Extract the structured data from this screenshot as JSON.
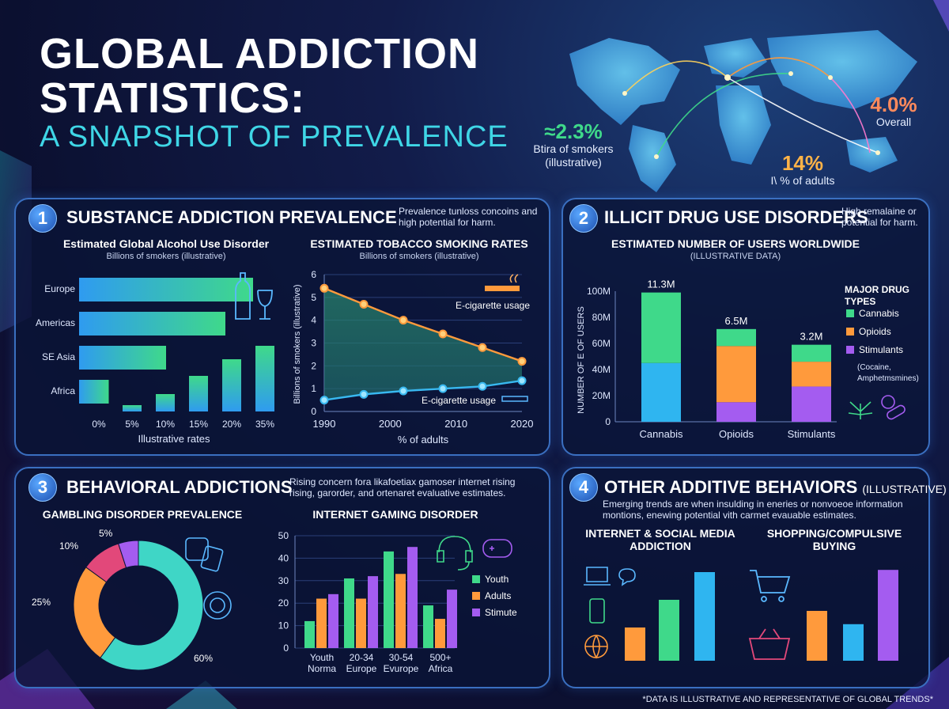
{
  "header": {
    "title_line1": "GLOBAL ADDICTION",
    "title_line2": "STATISTICS:",
    "subtitle": "A SNAPSHOT OF PREVALENCE"
  },
  "map": {
    "stat1": {
      "value": "≈2.3%",
      "line1": "Btira of smokers",
      "line2": "(illustrative)"
    },
    "stat2": {
      "value": "4.0%",
      "line1": "Overall"
    },
    "stat3": {
      "value": "14%",
      "line1": "I\\ % of adults"
    }
  },
  "panels": {
    "p1": {
      "num": "1",
      "title": "SUBSTANCE ADDICTION PREVALENCE",
      "desc": "Prevalence tunloss concoins and high potential for harm."
    },
    "p2": {
      "num": "2",
      "title": "ILLICIT DRUG USE DISORDERS",
      "desc": "High remalaine or potential for harm."
    },
    "p3": {
      "num": "3",
      "title": "BEHAVIORAL ADDICTIONS",
      "desc": "Rising concern fora likafoetiax gamoser internet rising rising, garorder, and ortenaret evaluative estimates."
    },
    "p4": {
      "num": "4",
      "title": "OTHER ADDITIVE BEHAVIORS",
      "title_note": "(ILLUSTRATIVE)",
      "desc": "Emerging trends are when insulding in eneries or nonvoeoe information montions, enewing potential vith carmet evauable estimates."
    }
  },
  "footer": "*DATA IS ILLUSTRATIVE AND REPRESENTATIVE OF GLOBAL TRENDS*",
  "colors": {
    "accent": "#3fd6e6",
    "panel_border": "#3a6fc0",
    "green": "#3fd98a",
    "orange": "#ff9a3c",
    "purple": "#a45cf0",
    "blue": "#2fb5f0"
  },
  "chart_data": [
    {
      "id": "alcohol",
      "type": "bar",
      "title": "Estimated Global Alcohol Use Disorder",
      "subtitle": "Billions of smokers (illustrative)",
      "xlabel": "Illustrative rates",
      "x_ticks": [
        "0%",
        "5%",
        "10%",
        "15%",
        "20%",
        "35%"
      ],
      "horizontal": {
        "categories": [
          "Europe",
          "Americas",
          "SE Asia",
          "Africa"
        ],
        "values": [
          88,
          74,
          44,
          15
        ]
      },
      "vertical": {
        "values": [
          8,
          22,
          45,
          66,
          83
        ]
      },
      "icon": "wine-icon"
    },
    {
      "id": "tobacco",
      "type": "line",
      "title": "ESTIMATED TOBACCO SMOKING RATES",
      "subtitle": "Billions of smokers (illustrative)",
      "ylabel": "Billions of smokers (illustrative)",
      "xlabel": "% of adults",
      "x_ticks": [
        "1990",
        "2000",
        "2010",
        "2020"
      ],
      "y_ticks": [
        "0",
        "1",
        "2",
        "3",
        "4",
        "5",
        "6"
      ],
      "xlim": [
        1990,
        2020
      ],
      "ylim": [
        0,
        6
      ],
      "series": [
        {
          "name": "E-cigarette usage",
          "x": [
            1990,
            1996,
            2002,
            2008,
            2014,
            2020
          ],
          "values": [
            5.4,
            4.7,
            4.0,
            3.4,
            2.8,
            2.2
          ]
        },
        {
          "name": "E-cigarette usage",
          "x": [
            1990,
            1996,
            2002,
            2008,
            2014,
            2020
          ],
          "values": [
            0.5,
            0.75,
            0.9,
            1.0,
            1.1,
            1.35
          ]
        }
      ]
    },
    {
      "id": "drugs",
      "type": "bar",
      "stacked": true,
      "title": "ESTIMATED NUMBER OF USERS WORLDWIDE",
      "subtitle": "(ILLUSTRATIVE DATA)",
      "ylabel": "NUMBER OF E OF USERS",
      "categories": [
        "Cannabis",
        "Opioids",
        "Stimulants"
      ],
      "top_labels": [
        "11.3M",
        "6.5M",
        "3.2M"
      ],
      "y_ticks": [
        "0",
        "20M",
        "40M",
        "60M",
        "80M",
        "100M"
      ],
      "ylim": [
        0,
        100
      ],
      "series": [
        {
          "color": "#2fb5f0",
          "values": [
            45,
            0,
            0
          ]
        },
        {
          "color": "#a45cf0",
          "values": [
            0,
            15,
            27
          ]
        },
        {
          "color": "#ff9a3c",
          "values": [
            0,
            43,
            19
          ]
        },
        {
          "color": "#3fd98a",
          "values": [
            54,
            13,
            13
          ]
        }
      ],
      "legend_title": "MAJOR DRUG TYPES",
      "legend": [
        {
          "label": "Cannabis",
          "color": "#3fd98a"
        },
        {
          "label": "Opioids",
          "color": "#ff9a3c"
        },
        {
          "label": "Stimulants",
          "color": "#a45cf0"
        }
      ],
      "legend_note1": "(Cocaine,",
      "legend_note2": "Amphetmsmines)"
    },
    {
      "id": "gambling",
      "type": "pie",
      "title": "GAMBLING DISORDER PREVALENCE",
      "slices": [
        {
          "label": "60%",
          "value": 60,
          "color": "#3fd6c6"
        },
        {
          "label": "25%",
          "value": 25,
          "color": "#ff9a3c"
        },
        {
          "label": "10%",
          "value": 10,
          "color": "#e2487a"
        },
        {
          "label": "5%",
          "value": 5,
          "color": "#a45cf0"
        }
      ]
    },
    {
      "id": "gaming",
      "type": "bar",
      "title": "INTERNET GAMING DISORDER",
      "categories": [
        [
          "Youth",
          "Norma"
        ],
        [
          "20-34",
          "Europe"
        ],
        [
          "30-54",
          "Evurope"
        ],
        [
          "500+",
          "Africa"
        ]
      ],
      "y_ticks": [
        "0",
        "10",
        "20",
        "30",
        "40",
        "50"
      ],
      "ylim": [
        0,
        50
      ],
      "series": [
        {
          "name": "Youth",
          "color": "#3fd98a",
          "values": [
            12,
            31,
            43,
            19
          ]
        },
        {
          "name": "Adults",
          "color": "#ff9a3c",
          "values": [
            22,
            22,
            33,
            13
          ]
        },
        {
          "name": "Stimute",
          "color": "#a45cf0",
          "values": [
            24,
            32,
            45,
            26
          ]
        }
      ]
    },
    {
      "id": "social",
      "type": "bar",
      "title_line1": "INTERNET & SOCIAL MEDIA",
      "title_line2": "ADDICTION",
      "values": [
        30,
        55,
        80
      ],
      "colors": [
        "#ff9a3c",
        "#3fd98a",
        "#2fb5f0"
      ]
    },
    {
      "id": "shopping",
      "type": "bar",
      "title_line1": "SHOPPING/COMPULSIVE",
      "title_line2": "BUYING",
      "values": [
        45,
        33,
        82
      ],
      "colors": [
        "#ff9a3c",
        "#2fb5f0",
        "#a45cf0"
      ]
    }
  ]
}
